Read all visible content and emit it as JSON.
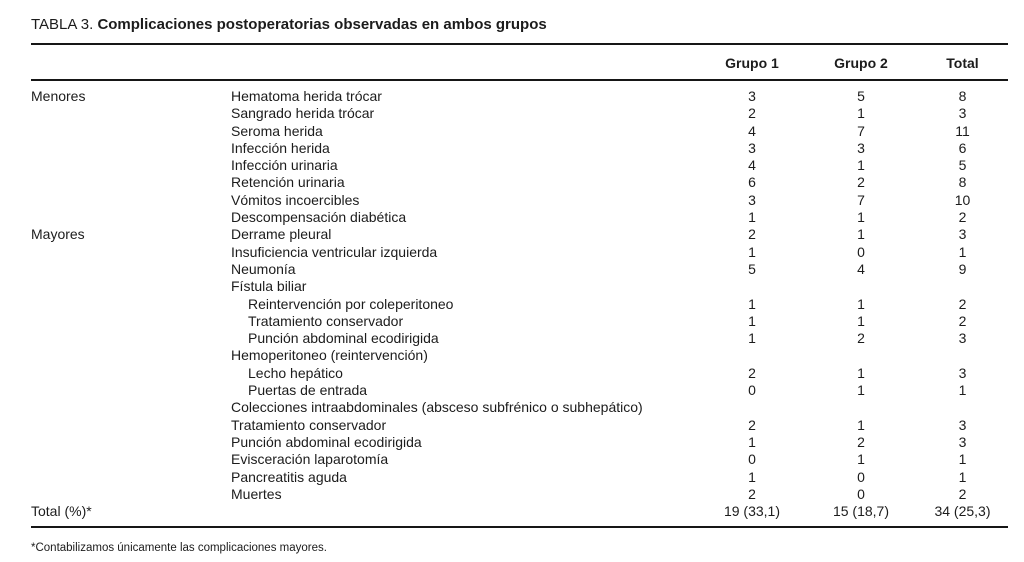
{
  "colors": {
    "background": "#ffffff",
    "text": "#1c1c1c",
    "rule": "#161616"
  },
  "table": {
    "label": "TABLA 3.",
    "title": "Complicaciones postoperatorias observadas en ambos grupos",
    "columns": [
      "Grupo 1",
      "Grupo 2",
      "Total"
    ],
    "rows": [
      {
        "category": "Menores",
        "name": "Hematoma herida trócar",
        "indent": 0,
        "g1": "3",
        "g2": "5",
        "total": "8"
      },
      {
        "category": "",
        "name": "Sangrado herida trócar",
        "indent": 0,
        "g1": "2",
        "g2": "1",
        "total": "3"
      },
      {
        "category": "",
        "name": "Seroma herida",
        "indent": 0,
        "g1": "4",
        "g2": "7",
        "total": "11"
      },
      {
        "category": "",
        "name": "Infección herida",
        "indent": 0,
        "g1": "3",
        "g2": "3",
        "total": "6"
      },
      {
        "category": "",
        "name": "Infección urinaria",
        "indent": 0,
        "g1": "4",
        "g2": "1",
        "total": "5"
      },
      {
        "category": "",
        "name": "Retención urinaria",
        "indent": 0,
        "g1": "6",
        "g2": "2",
        "total": "8"
      },
      {
        "category": "",
        "name": "Vómitos incoercibles",
        "indent": 0,
        "g1": "3",
        "g2": "7",
        "total": "10"
      },
      {
        "category": "",
        "name": "Descompensación diabética",
        "indent": 0,
        "g1": "1",
        "g2": "1",
        "total": "2"
      },
      {
        "category": "Mayores",
        "name": "Derrame pleural",
        "indent": 0,
        "g1": "2",
        "g2": "1",
        "total": "3"
      },
      {
        "category": "",
        "name": "Insuficiencia ventricular izquierda",
        "indent": 0,
        "g1": "1",
        "g2": "0",
        "total": "1"
      },
      {
        "category": "",
        "name": "Neumonía",
        "indent": 0,
        "g1": "5",
        "g2": "4",
        "total": "9"
      },
      {
        "category": "",
        "name": "Fístula biliar",
        "indent": 0,
        "g1": "",
        "g2": "",
        "total": ""
      },
      {
        "category": "",
        "name": "Reintervención por coleperitoneo",
        "indent": 1,
        "g1": "1",
        "g2": "1",
        "total": "2"
      },
      {
        "category": "",
        "name": "Tratamiento conservador",
        "indent": 1,
        "g1": "1",
        "g2": "1",
        "total": "2"
      },
      {
        "category": "",
        "name": "Punción abdominal ecodirigida",
        "indent": 1,
        "g1": "1",
        "g2": "2",
        "total": "3"
      },
      {
        "category": "",
        "name": "Hemoperitoneo (reintervención)",
        "indent": 0,
        "g1": "",
        "g2": "",
        "total": ""
      },
      {
        "category": "",
        "name": "Lecho hepático",
        "indent": 1,
        "g1": "2",
        "g2": "1",
        "total": "3"
      },
      {
        "category": "",
        "name": "Puertas de entrada",
        "indent": 1,
        "g1": "0",
        "g2": "1",
        "total": "1"
      },
      {
        "category": "",
        "name": "Colecciones intraabdominales (absceso subfrénico o subhepático)",
        "indent": 0,
        "g1": "",
        "g2": "",
        "total": ""
      },
      {
        "category": "",
        "name": "Tratamiento conservador",
        "indent": 0,
        "g1": "2",
        "g2": "1",
        "total": "3"
      },
      {
        "category": "",
        "name": "Punción abdominal ecodirigida",
        "indent": 0,
        "g1": "1",
        "g2": "2",
        "total": "3"
      },
      {
        "category": "",
        "name": "Evisceración laparotomía",
        "indent": 0,
        "g1": "0",
        "g2": "1",
        "total": "1"
      },
      {
        "category": "",
        "name": "Pancreatitis aguda",
        "indent": 0,
        "g1": "1",
        "g2": "0",
        "total": "1"
      },
      {
        "category": "",
        "name": "Muertes",
        "indent": 0,
        "g1": "2",
        "g2": "0",
        "total": "2"
      }
    ],
    "total_row": {
      "category": "Total (%)*",
      "g1": "19 (33,1)",
      "g2": "15 (18,7)",
      "total": "34 (25,3)"
    },
    "footnote": "*Contabilizamos únicamente las complicaciones mayores."
  }
}
